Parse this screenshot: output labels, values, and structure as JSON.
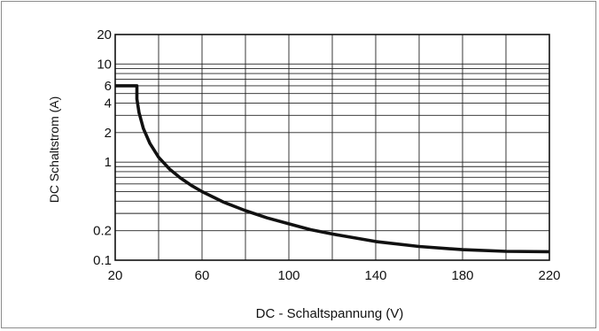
{
  "chart_data": {
    "type": "line",
    "title": "",
    "xlabel": "DC - Schaltspannung (V)",
    "ylabel": "DC Schaltstrom (A)",
    "x_scale": "linear",
    "y_scale": "log",
    "xlim": [
      20,
      220
    ],
    "ylim": [
      0.1,
      20
    ],
    "x_major_ticks": [
      20,
      60,
      100,
      140,
      180,
      220
    ],
    "x_minor_ticks": [
      40,
      80,
      120,
      160,
      200
    ],
    "y_tick_labels": [
      0.1,
      0.2,
      1,
      2,
      4,
      6,
      10,
      20
    ],
    "y_gridlines": [
      0.1,
      0.2,
      0.3,
      0.4,
      0.5,
      0.6,
      0.7,
      0.8,
      0.9,
      1,
      2,
      3,
      4,
      5,
      6,
      7,
      8,
      9,
      10,
      20
    ],
    "grid": true,
    "legend": "none",
    "series": [
      {
        "color": "#111111",
        "x": [
          20,
          30,
          30,
          31,
          33,
          36,
          40,
          45,
          50,
          55,
          60,
          70,
          80,
          90,
          100,
          110,
          120,
          140,
          160,
          180,
          200,
          220
        ],
        "y": [
          6,
          6,
          4.4,
          3.2,
          2.2,
          1.55,
          1.12,
          0.85,
          0.69,
          0.58,
          0.5,
          0.39,
          0.32,
          0.27,
          0.235,
          0.205,
          0.185,
          0.155,
          0.138,
          0.128,
          0.123,
          0.122
        ]
      }
    ]
  }
}
